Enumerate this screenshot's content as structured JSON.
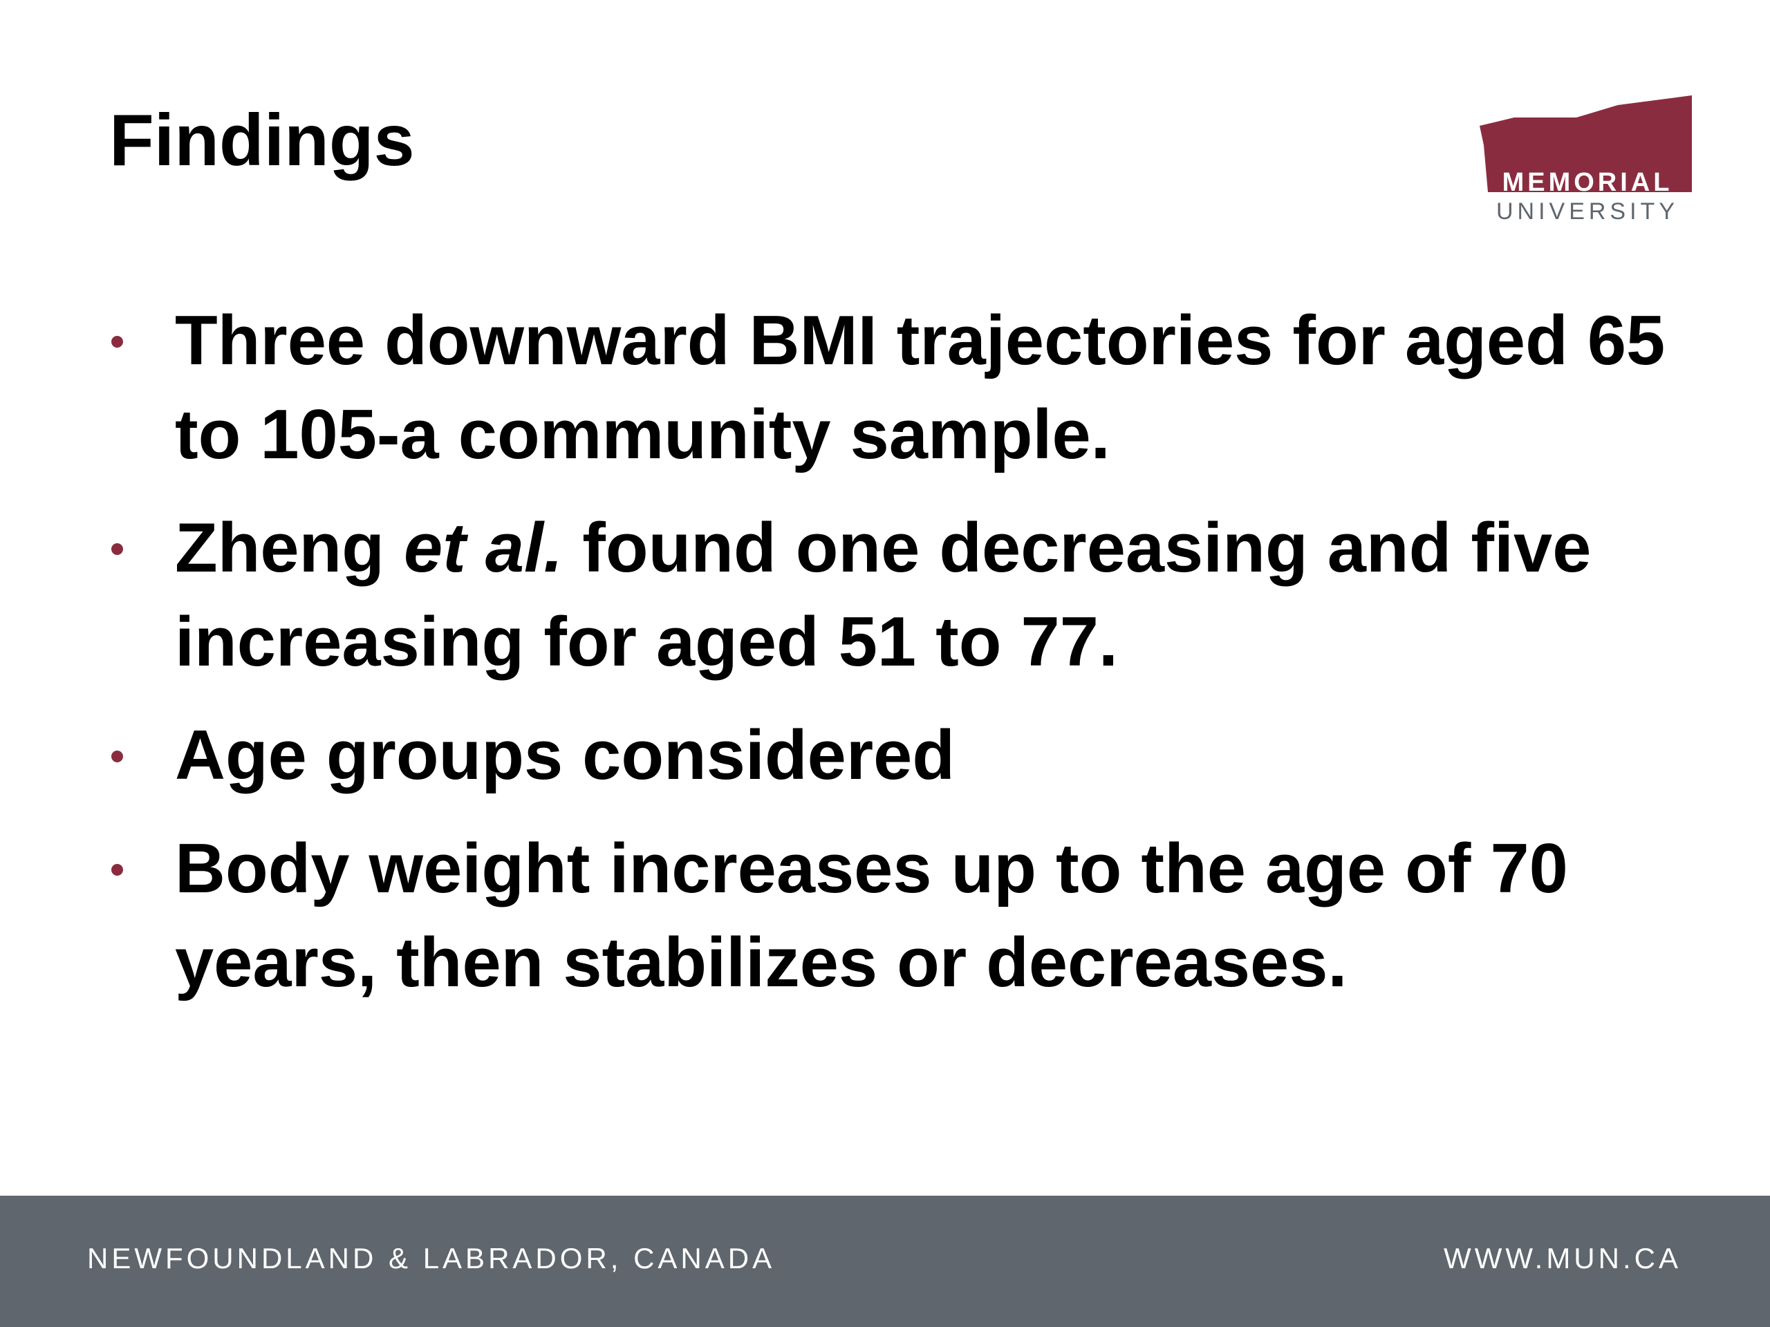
{
  "header": {
    "title": "Findings",
    "logo": {
      "line1": "MEMORIAL",
      "line2": "UNIVERSITY"
    }
  },
  "bullets": [
    {
      "parts": [
        "Three downward BMI trajectories for aged 65 to 105-a community sample."
      ]
    },
    {
      "parts": [
        "Zheng ",
        "et al.",
        " found one decreasing and five increasing for aged 51 to 77."
      ]
    },
    {
      "parts": [
        "Age groups considered"
      ]
    },
    {
      "parts": [
        "Body weight increases up to the age of 70 years, then stabilizes or decreases."
      ]
    }
  ],
  "footer": {
    "left": "NEWFOUNDLAND & LABRADOR, CANADA",
    "right": "WWW.MUN.CA"
  }
}
